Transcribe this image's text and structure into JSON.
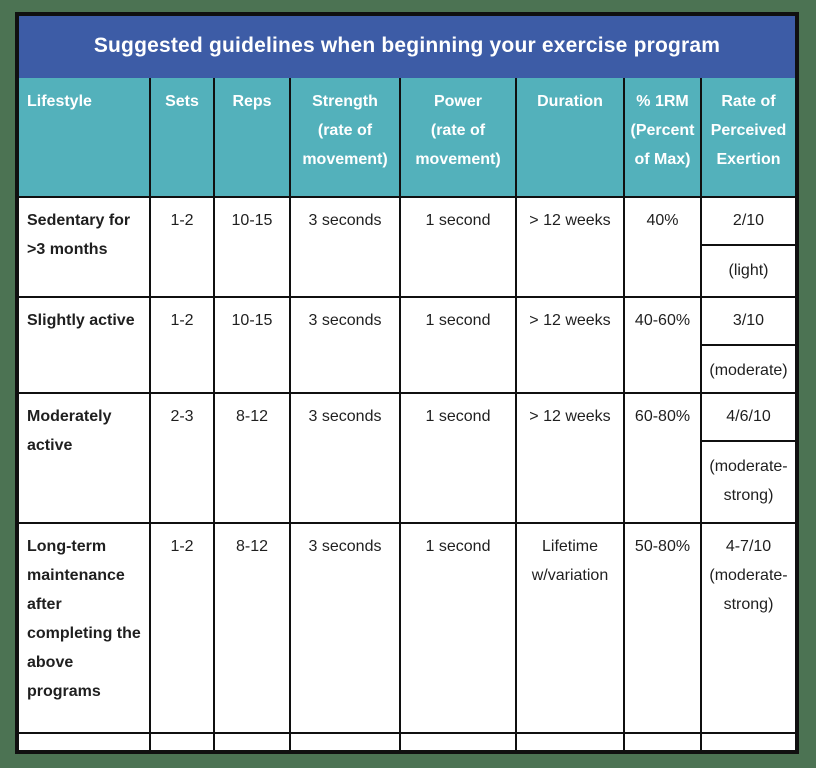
{
  "title": "Suggested guidelines when beginning your exercise program",
  "colors": {
    "page_background": "#4c7353",
    "title_bar": "#3d5ca6",
    "header_row": "#53b1bb",
    "border": "#101010",
    "header_text": "#ffffff",
    "body_text": "#1f1f1f"
  },
  "table": {
    "headers": [
      "Lifestyle",
      "Sets",
      "Reps",
      "Strength\n(rate of\nmovement)",
      "Power\n(rate of\nmovement)",
      "Duration",
      "% 1RM\n(Percent\nof Max)",
      "Rate of\nPerceived\nExertion"
    ],
    "rows": [
      {
        "lifestyle": "Sedentary for\n>3 months",
        "sets": "1-2",
        "reps": "10-15",
        "strength": "3 seconds",
        "power": "1 second",
        "duration": "> 12 weeks",
        "one_rm": "40%",
        "rpe_value": "2/10",
        "rpe_label": "(light)"
      },
      {
        "lifestyle": "Slightly active",
        "sets": "1-2",
        "reps": "10-15",
        "strength": "3 seconds",
        "power": "1 second",
        "duration": "> 12 weeks",
        "one_rm": "40-60%",
        "rpe_value": "3/10",
        "rpe_label": "(moderate)"
      },
      {
        "lifestyle": "Moderately\nactive",
        "sets": "2-3",
        "reps": "8-12",
        "strength": "3 seconds",
        "power": "1 second",
        "duration": "> 12 weeks",
        "one_rm": "60-80%",
        "rpe_value": "4/6/10",
        "rpe_label": "(moderate-\nstrong)"
      },
      {
        "lifestyle": "Long-term\nmaintenance\nafter\ncompleting the\nabove programs",
        "sets": "1-2",
        "reps": "8-12",
        "strength": "3 seconds",
        "power": "1 second",
        "duration": "Lifetime\nw/variation",
        "one_rm": "50-80%",
        "rpe_value": "4-7/10\n(moderate-\nstrong)",
        "rpe_label": ""
      }
    ],
    "footer_row_cells": [
      "",
      "",
      "",
      "",
      "",
      "",
      "",
      ""
    ]
  }
}
